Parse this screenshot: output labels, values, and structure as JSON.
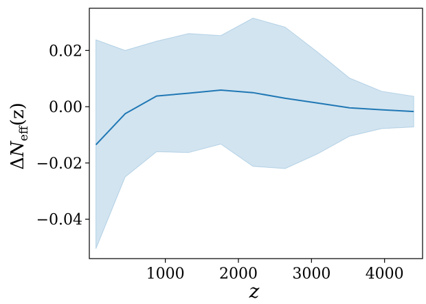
{
  "chart_data": {
    "type": "line",
    "title": "",
    "xlabel": "z",
    "ylabel": {
      "prefix": "Δ",
      "symbol": "N",
      "subscript": "eff",
      "argument": "(z)"
    },
    "xlim": [
      -40,
      4520
    ],
    "ylim": [
      -0.054,
      0.035
    ],
    "x_ticks": [
      1000,
      2000,
      3000,
      4000
    ],
    "x_tick_labels": [
      "1000",
      "2000",
      "3000",
      "4000"
    ],
    "y_ticks": [
      0.02,
      0.0,
      -0.02,
      -0.04
    ],
    "y_tick_labels": [
      "0.02",
      "0.00",
      "−0.02",
      "−0.04"
    ],
    "grid": false,
    "spines": [
      "left",
      "bottom",
      "top",
      "right"
    ],
    "series": [
      {
        "x": [
          50,
          450,
          880,
          1320,
          1760,
          2200,
          2640,
          3080,
          3520,
          3960,
          4400
        ],
        "values": [
          -0.0135,
          -0.0025,
          0.0038,
          0.0048,
          0.0059,
          0.005,
          0.003,
          0.0013,
          -0.0004,
          -0.0011,
          -0.0017
        ],
        "lower": [
          -0.0505,
          -0.025,
          -0.016,
          -0.0163,
          -0.0133,
          -0.0212,
          -0.022,
          -0.0168,
          -0.0105,
          -0.0078,
          -0.0072
        ],
        "upper": [
          0.0238,
          0.02,
          0.0233,
          0.026,
          0.0253,
          0.0315,
          0.0283,
          0.0195,
          0.0102,
          0.0055,
          0.0037
        ],
        "color": "#1f77b4",
        "fill_color": "#1f77b4"
      }
    ]
  }
}
